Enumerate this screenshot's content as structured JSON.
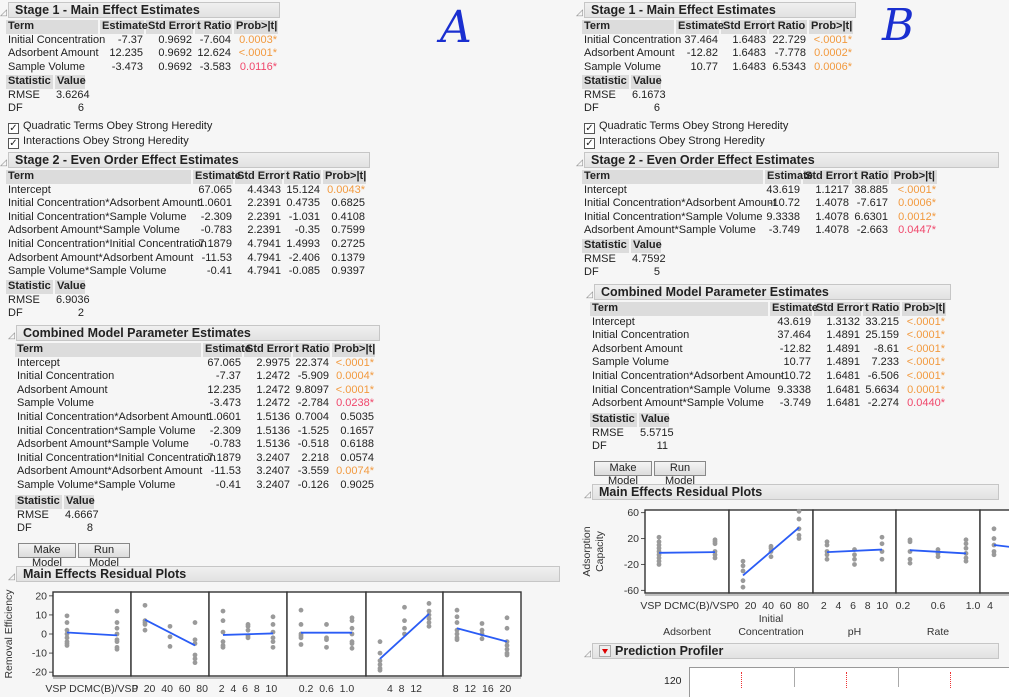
{
  "annotations": {
    "left": "A",
    "right": "B"
  },
  "colors": {
    "prob_high": "#F29A3F",
    "prob_mid": "#F0476B",
    "line": "#2a5cf5",
    "point": "#9a9a9a"
  },
  "columns": [
    "Term",
    "Estimate",
    "Std Error",
    "t Ratio",
    "Prob>|t|"
  ],
  "stat_columns": [
    "Statistic",
    "Value"
  ],
  "checkboxes": {
    "quadratic": "Quadratic Terms Obey Strong Heredity",
    "interactions": "Interactions Obey Strong Heredity",
    "checked": true
  },
  "buttons": {
    "make_model": "Make Model",
    "run_model": "Run Model"
  },
  "left": {
    "stage1": {
      "title": "Stage 1 - Main Effect Estimates",
      "rows": [
        [
          "Initial Concentration",
          "-7.37",
          "0.9692",
          "-7.604",
          "0.0003*"
        ],
        [
          "Adsorbent Amount",
          "12.235",
          "0.9692",
          "12.624",
          "<.0001*"
        ],
        [
          "Sample Volume",
          "-3.473",
          "0.9692",
          "-3.583",
          "0.0116*"
        ]
      ],
      "stats": [
        [
          "RMSE",
          "3.6264"
        ],
        [
          "DF",
          "6"
        ]
      ]
    },
    "stage2": {
      "title": "Stage 2 - Even Order Effect Estimates",
      "rows": [
        [
          "Intercept",
          "67.065",
          "4.4343",
          "15.124",
          "0.0043*"
        ],
        [
          "Initial Concentration*Adsorbent Amount",
          "1.0601",
          "2.2391",
          "0.4735",
          "0.6825"
        ],
        [
          "Initial Concentration*Sample Volume",
          "-2.309",
          "2.2391",
          "-1.031",
          "0.4108"
        ],
        [
          "Adsorbent Amount*Sample Volume",
          "-0.783",
          "2.2391",
          "-0.35",
          "0.7599"
        ],
        [
          "Initial Concentration*Initial Concentration",
          "7.1879",
          "4.7941",
          "1.4993",
          "0.2725"
        ],
        [
          "Adsorbent Amount*Adsorbent Amount",
          "-11.53",
          "4.7941",
          "-2.406",
          "0.1379"
        ],
        [
          "Sample Volume*Sample Volume",
          "-0.41",
          "4.7941",
          "-0.085",
          "0.9397"
        ]
      ],
      "stats": [
        [
          "RMSE",
          "6.9036"
        ],
        [
          "DF",
          "2"
        ]
      ]
    },
    "combined": {
      "title": "Combined Model Parameter Estimates",
      "rows": [
        [
          "Intercept",
          "67.065",
          "2.9975",
          "22.374",
          "<.0001*"
        ],
        [
          "Initial Concentration",
          "-7.37",
          "1.2472",
          "-5.909",
          "0.0004*"
        ],
        [
          "Adsorbent Amount",
          "12.235",
          "1.2472",
          "9.8097",
          "<.0001*"
        ],
        [
          "Sample Volume",
          "-3.473",
          "1.2472",
          "-2.784",
          "0.0238*"
        ],
        [
          "Initial Concentration*Adsorbent Amount",
          "1.0601",
          "1.5136",
          "0.7004",
          "0.5035"
        ],
        [
          "Initial Concentration*Sample Volume",
          "-2.309",
          "1.5136",
          "-1.525",
          "0.1657"
        ],
        [
          "Adsorbent Amount*Sample Volume",
          "-0.783",
          "1.5136",
          "-0.518",
          "0.6188"
        ],
        [
          "Initial Concentration*Initial Concentration",
          "7.1879",
          "3.2407",
          "2.218",
          "0.0574"
        ],
        [
          "Adsorbent Amount*Adsorbent Amount",
          "-11.53",
          "3.2407",
          "-3.559",
          "0.0074*"
        ],
        [
          "Sample Volume*Sample Volume",
          "-0.41",
          "3.2407",
          "-0.126",
          "0.9025"
        ]
      ],
      "stats": [
        [
          "RMSE",
          "4.6667"
        ],
        [
          "DF",
          "8"
        ]
      ]
    },
    "residuals": {
      "title": "Main Effects Residual Plots",
      "ylabel": [
        "Removal Efficiency"
      ],
      "ylim": [
        -22,
        22
      ],
      "yticks": [
        "20",
        "10",
        "0",
        "-10",
        "-20"
      ],
      "xtick_labels": [
        "VSP DCMC(B)/VSP",
        "0  20  40  60  80",
        "2  4  6  8  10",
        "0.2  0.6  1.0",
        "4  8  12",
        "8  12  16  20"
      ],
      "xtitles": [],
      "panels": [
        {
          "line": [
            0.8,
            -0.7
          ],
          "points": [
            [
              0,
              [
                9.5,
                6,
                2,
                0,
                -2,
                -4,
                -5,
                -6
              ]
            ],
            [
              1,
              [
                12,
                6,
                3,
                0,
                -3,
                -4,
                -7,
                -8
              ]
            ]
          ]
        },
        {
          "line": [
            7.5,
            -6
          ],
          "points": [
            [
              0,
              [
                15,
                7,
                6,
                5,
                2
              ]
            ],
            [
              0.5,
              [
                4,
                -1.5,
                -6.5
              ]
            ],
            [
              1,
              [
                6,
                -3,
                -5,
                -11,
                -13,
                -15
              ]
            ]
          ]
        },
        {
          "line": [
            -0.5,
            0.3
          ],
          "points": [
            [
              0,
              [
                12,
                7,
                1,
                -4,
                -6,
                -7
              ]
            ],
            [
              0.5,
              [
                5,
                4,
                2,
                -1,
                -2
              ]
            ],
            [
              1,
              [
                9,
                5,
                1,
                -2,
                -4,
                -7
              ]
            ]
          ]
        },
        {
          "line": [
            0.7,
            0.7
          ],
          "points": [
            [
              0,
              [
                12.5,
                5,
                0,
                -1,
                -2,
                -5.5
              ]
            ],
            [
              0.5,
              [
                5,
                -2,
                -3,
                -7
              ]
            ],
            [
              1,
              [
                8.5,
                7,
                3,
                0,
                -4,
                -5,
                -7.5
              ]
            ]
          ]
        },
        {
          "line": [
            -13,
            10.5
          ],
          "points": [
            [
              0,
              [
                -4,
                -10,
                -14,
                -16,
                -18,
                -19
              ]
            ],
            [
              0.5,
              [
                14,
                7,
                3,
                0
              ]
            ],
            [
              1,
              [
                16,
                12,
                10,
                8,
                6,
                4
              ]
            ]
          ]
        },
        {
          "line": [
            3,
            -4
          ],
          "points": [
            [
              0,
              [
                12.5,
                9,
                6,
                2,
                0,
                -2,
                -3
              ]
            ],
            [
              0.5,
              [
                5.5,
                2,
                0,
                -2.5
              ]
            ],
            [
              1,
              [
                8.5,
                3,
                -4,
                -6,
                -8,
                -10,
                -11
              ]
            ]
          ]
        }
      ]
    }
  },
  "right": {
    "stage1": {
      "title": "Stage 1 - Main Effect Estimates",
      "rows": [
        [
          "Initial Concentration",
          "37.464",
          "1.6483",
          "22.729",
          "<.0001*"
        ],
        [
          "Adsorbent Amount",
          "-12.82",
          "1.6483",
          "-7.778",
          "0.0002*"
        ],
        [
          "Sample Volume",
          "10.77",
          "1.6483",
          "6.5343",
          "0.0006*"
        ]
      ],
      "stats": [
        [
          "RMSE",
          "6.1673"
        ],
        [
          "DF",
          "6"
        ]
      ]
    },
    "stage2": {
      "title": "Stage 2 - Even Order Effect Estimates",
      "rows": [
        [
          "Intercept",
          "43.619",
          "1.1217",
          "38.885",
          "<.0001*"
        ],
        [
          "Initial Concentration*Adsorbent Amount",
          "-10.72",
          "1.4078",
          "-7.617",
          "0.0006*"
        ],
        [
          "Initial Concentration*Sample Volume",
          "9.3338",
          "1.4078",
          "6.6301",
          "0.0012*"
        ],
        [
          "Adsorbent Amount*Sample Volume",
          "-3.749",
          "1.4078",
          "-2.663",
          "0.0447*"
        ]
      ],
      "stats": [
        [
          "RMSE",
          "4.7592"
        ],
        [
          "DF",
          "5"
        ]
      ]
    },
    "combined": {
      "title": "Combined Model Parameter Estimates",
      "rows": [
        [
          "Intercept",
          "43.619",
          "1.3132",
          "33.215",
          "<.0001*"
        ],
        [
          "Initial Concentration",
          "37.464",
          "1.4891",
          "25.159",
          "<.0001*"
        ],
        [
          "Adsorbent Amount",
          "-12.82",
          "1.4891",
          "-8.61",
          "<.0001*"
        ],
        [
          "Sample Volume",
          "10.77",
          "1.4891",
          "7.233",
          "<.0001*"
        ],
        [
          "Initial Concentration*Adsorbent Amount",
          "-10.72",
          "1.6481",
          "-6.506",
          "<.0001*"
        ],
        [
          "Initial Concentration*Sample Volume",
          "9.3338",
          "1.6481",
          "5.6634",
          "0.0001*"
        ],
        [
          "Adsorbent Amount*Sample Volume",
          "-3.749",
          "1.6481",
          "-2.274",
          "0.0440*"
        ]
      ],
      "stats": [
        [
          "RMSE",
          "5.5715"
        ],
        [
          "DF",
          "11"
        ]
      ]
    },
    "residuals": {
      "title": "Main Effects Residual Plots",
      "ylabel": [
        "Adsorption",
        "Capacity"
      ],
      "ylim": [
        -64,
        64
      ],
      "yticks": [
        "60",
        "20",
        "-20",
        "-60"
      ],
      "xtick_labels": [
        "VSP DCMC(B)/VSP",
        "0  20  40  60  80",
        "2   4   6   8  10",
        "0.2       0.6       1.0",
        "4"
      ],
      "xtitles": [
        "Adsorbent",
        "Initial\nConcentration",
        "pH",
        "Rate"
      ],
      "panels": [
        {
          "line": [
            -2,
            -1
          ],
          "points": [
            [
              0,
              [
                22,
                15,
                10,
                5,
                0,
                -5,
                -10,
                -15,
                -20
              ]
            ],
            [
              1,
              [
                18,
                15,
                12,
                0,
                -5,
                -10
              ]
            ]
          ]
        },
        {
          "line": [
            -37,
            37
          ],
          "points": [
            [
              0,
              [
                -15,
                -22,
                -30,
                -45,
                -55
              ]
            ],
            [
              0.5,
              [
                8,
                5,
                0,
                -8
              ]
            ],
            [
              1,
              [
                62,
                50,
                35,
                25,
                20
              ]
            ]
          ]
        },
        {
          "line": [
            -1,
            3
          ],
          "points": [
            [
              0,
              [
                15,
                10,
                0,
                -5,
                -12
              ]
            ],
            [
              0.5,
              [
                3,
                -5,
                -12,
                -20
              ]
            ],
            [
              1,
              [
                22,
                12,
                0,
                -12
              ]
            ]
          ]
        },
        {
          "line": [
            2,
            -3
          ],
          "points": [
            [
              0,
              [
                18,
                15,
                0,
                -12,
                -18
              ]
            ],
            [
              0.5,
              [
                3,
                -3,
                -8
              ]
            ],
            [
              1,
              [
                18,
                12,
                5,
                -3,
                -10,
                -15
              ]
            ]
          ]
        },
        {
          "line": [
            10,
            -2
          ],
          "points": [
            [
              0,
              [
                35,
                20,
                10,
                0,
                -5
              ]
            ]
          ]
        }
      ]
    },
    "profiler": {
      "title": "Prediction Profiler",
      "ytick": "120"
    }
  }
}
